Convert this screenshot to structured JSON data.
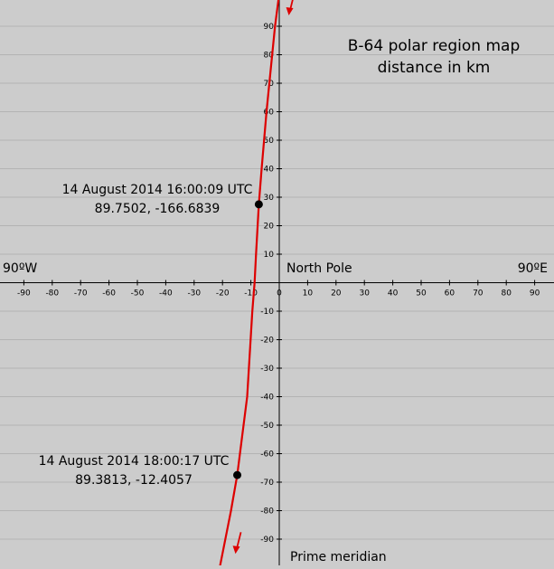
{
  "chart_data": {
    "type": "line",
    "title_line1": "B-64 polar region map",
    "title_line2": "distance in km",
    "xlim": [
      -100,
      100
    ],
    "ylim": [
      -100,
      100
    ],
    "grid": true,
    "x_ticks": [
      -90,
      -80,
      -70,
      -60,
      -50,
      -40,
      -30,
      -20,
      -10,
      0,
      10,
      20,
      30,
      40,
      50,
      60,
      70,
      80,
      90
    ],
    "y_ticks": [
      -90,
      -80,
      -70,
      -60,
      -50,
      -40,
      -30,
      -20,
      -10,
      10,
      20,
      30,
      40,
      50,
      60,
      70,
      80,
      90
    ],
    "x_tick_labels": [
      "-90",
      "-80",
      "-70",
      "-60",
      "-50",
      "-40",
      "-30",
      "-20",
      "-10",
      "0",
      "10",
      "20",
      "30",
      "40",
      "50",
      "60",
      "70",
      "80",
      "90"
    ],
    "y_tick_labels": [
      "-90",
      "-80",
      "-70",
      "-60",
      "-50",
      "-40",
      "-30",
      "-20",
      "-10",
      "10",
      "20",
      "30",
      "40",
      "50",
      "60",
      "70",
      "80",
      "90"
    ],
    "axis_labels": {
      "west": "90ºW",
      "east": "90ºE",
      "origin": "North Pole",
      "bottom": "Prime meridian"
    },
    "line_color": "#dd0000",
    "track": [
      {
        "x": -0.2,
        "y": 100
      },
      {
        "x": -1.5,
        "y": 90
      },
      {
        "x": -4.5,
        "y": 60
      },
      {
        "x": -6.2,
        "y": 40
      },
      {
        "x": -7.2,
        "y": 27.5
      },
      {
        "x": -8.2,
        "y": 10
      },
      {
        "x": -8.7,
        "y": 0
      },
      {
        "x": -9.5,
        "y": -10
      },
      {
        "x": -11.3,
        "y": -40
      },
      {
        "x": -14.8,
        "y": -67.5
      },
      {
        "x": -17,
        "y": -80
      },
      {
        "x": -21,
        "y": -100
      }
    ],
    "points": [
      {
        "x": -7.2,
        "y": 27.5,
        "label": "14 August 2014 16:00:09 UTC",
        "coords": "89.7502, -166.6839"
      },
      {
        "x": -14.8,
        "y": -67.5,
        "label": "14 August 2014 18:00:17 UTC",
        "coords": "89.3813, -12.4057"
      }
    ],
    "direction_arrows": [
      {
        "x": 4,
        "y": 97
      },
      {
        "x": -14.8,
        "y": -92
      }
    ]
  }
}
